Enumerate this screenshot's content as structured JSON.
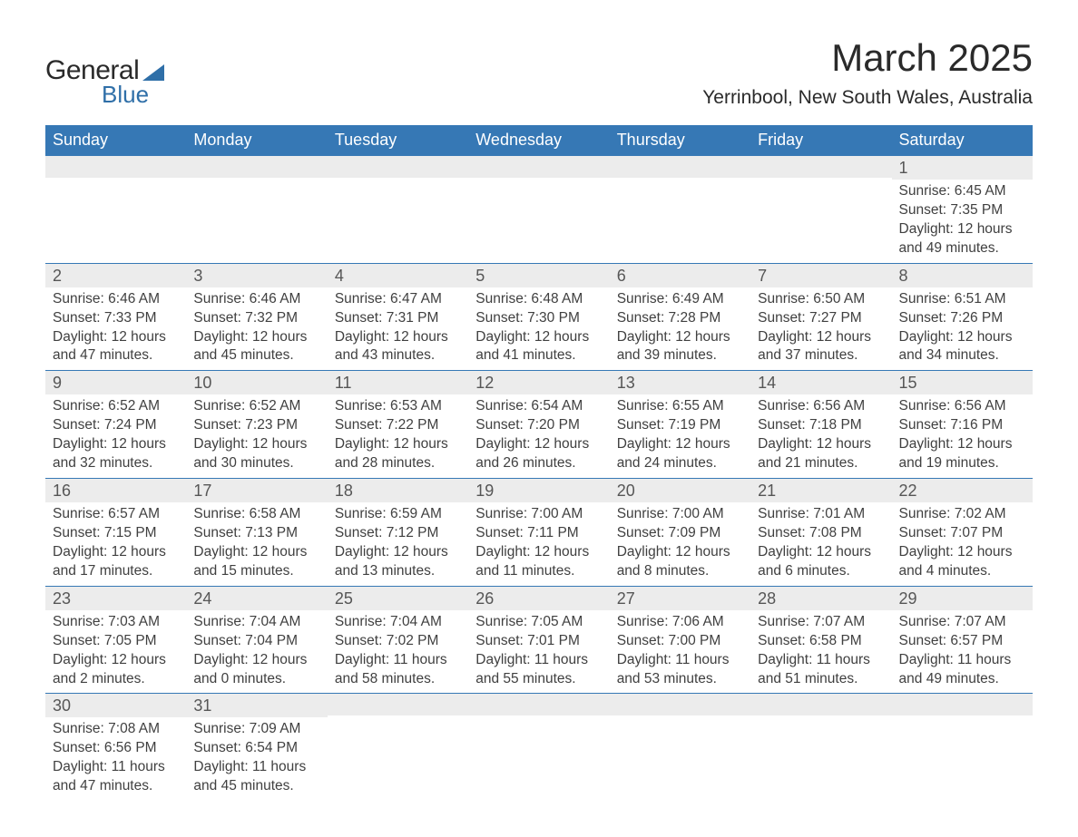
{
  "logo": {
    "text1": "General",
    "text2": "Blue"
  },
  "title": "March 2025",
  "location": "Yerrinbool, New South Wales, Australia",
  "colors": {
    "header_bg": "#3678b5",
    "header_text": "#ffffff",
    "daynum_bg": "#ececec",
    "border": "#3678b5",
    "logo_accent": "#2f6fa8"
  },
  "typography": {
    "title_fontsize": 42,
    "location_fontsize": 21,
    "header_fontsize": 18,
    "daynum_fontsize": 18,
    "body_fontsize": 15.5
  },
  "weekdays": [
    "Sunday",
    "Monday",
    "Tuesday",
    "Wednesday",
    "Thursday",
    "Friday",
    "Saturday"
  ],
  "weeks": [
    [
      {
        "day": "",
        "sunrise": "",
        "sunset": "",
        "daylight": ""
      },
      {
        "day": "",
        "sunrise": "",
        "sunset": "",
        "daylight": ""
      },
      {
        "day": "",
        "sunrise": "",
        "sunset": "",
        "daylight": ""
      },
      {
        "day": "",
        "sunrise": "",
        "sunset": "",
        "daylight": ""
      },
      {
        "day": "",
        "sunrise": "",
        "sunset": "",
        "daylight": ""
      },
      {
        "day": "",
        "sunrise": "",
        "sunset": "",
        "daylight": ""
      },
      {
        "day": "1",
        "sunrise": "Sunrise: 6:45 AM",
        "sunset": "Sunset: 7:35 PM",
        "daylight": "Daylight: 12 hours and 49 minutes."
      }
    ],
    [
      {
        "day": "2",
        "sunrise": "Sunrise: 6:46 AM",
        "sunset": "Sunset: 7:33 PM",
        "daylight": "Daylight: 12 hours and 47 minutes."
      },
      {
        "day": "3",
        "sunrise": "Sunrise: 6:46 AM",
        "sunset": "Sunset: 7:32 PM",
        "daylight": "Daylight: 12 hours and 45 minutes."
      },
      {
        "day": "4",
        "sunrise": "Sunrise: 6:47 AM",
        "sunset": "Sunset: 7:31 PM",
        "daylight": "Daylight: 12 hours and 43 minutes."
      },
      {
        "day": "5",
        "sunrise": "Sunrise: 6:48 AM",
        "sunset": "Sunset: 7:30 PM",
        "daylight": "Daylight: 12 hours and 41 minutes."
      },
      {
        "day": "6",
        "sunrise": "Sunrise: 6:49 AM",
        "sunset": "Sunset: 7:28 PM",
        "daylight": "Daylight: 12 hours and 39 minutes."
      },
      {
        "day": "7",
        "sunrise": "Sunrise: 6:50 AM",
        "sunset": "Sunset: 7:27 PM",
        "daylight": "Daylight: 12 hours and 37 minutes."
      },
      {
        "day": "8",
        "sunrise": "Sunrise: 6:51 AM",
        "sunset": "Sunset: 7:26 PM",
        "daylight": "Daylight: 12 hours and 34 minutes."
      }
    ],
    [
      {
        "day": "9",
        "sunrise": "Sunrise: 6:52 AM",
        "sunset": "Sunset: 7:24 PM",
        "daylight": "Daylight: 12 hours and 32 minutes."
      },
      {
        "day": "10",
        "sunrise": "Sunrise: 6:52 AM",
        "sunset": "Sunset: 7:23 PM",
        "daylight": "Daylight: 12 hours and 30 minutes."
      },
      {
        "day": "11",
        "sunrise": "Sunrise: 6:53 AM",
        "sunset": "Sunset: 7:22 PM",
        "daylight": "Daylight: 12 hours and 28 minutes."
      },
      {
        "day": "12",
        "sunrise": "Sunrise: 6:54 AM",
        "sunset": "Sunset: 7:20 PM",
        "daylight": "Daylight: 12 hours and 26 minutes."
      },
      {
        "day": "13",
        "sunrise": "Sunrise: 6:55 AM",
        "sunset": "Sunset: 7:19 PM",
        "daylight": "Daylight: 12 hours and 24 minutes."
      },
      {
        "day": "14",
        "sunrise": "Sunrise: 6:56 AM",
        "sunset": "Sunset: 7:18 PM",
        "daylight": "Daylight: 12 hours and 21 minutes."
      },
      {
        "day": "15",
        "sunrise": "Sunrise: 6:56 AM",
        "sunset": "Sunset: 7:16 PM",
        "daylight": "Daylight: 12 hours and 19 minutes."
      }
    ],
    [
      {
        "day": "16",
        "sunrise": "Sunrise: 6:57 AM",
        "sunset": "Sunset: 7:15 PM",
        "daylight": "Daylight: 12 hours and 17 minutes."
      },
      {
        "day": "17",
        "sunrise": "Sunrise: 6:58 AM",
        "sunset": "Sunset: 7:13 PM",
        "daylight": "Daylight: 12 hours and 15 minutes."
      },
      {
        "day": "18",
        "sunrise": "Sunrise: 6:59 AM",
        "sunset": "Sunset: 7:12 PM",
        "daylight": "Daylight: 12 hours and 13 minutes."
      },
      {
        "day": "19",
        "sunrise": "Sunrise: 7:00 AM",
        "sunset": "Sunset: 7:11 PM",
        "daylight": "Daylight: 12 hours and 11 minutes."
      },
      {
        "day": "20",
        "sunrise": "Sunrise: 7:00 AM",
        "sunset": "Sunset: 7:09 PM",
        "daylight": "Daylight: 12 hours and 8 minutes."
      },
      {
        "day": "21",
        "sunrise": "Sunrise: 7:01 AM",
        "sunset": "Sunset: 7:08 PM",
        "daylight": "Daylight: 12 hours and 6 minutes."
      },
      {
        "day": "22",
        "sunrise": "Sunrise: 7:02 AM",
        "sunset": "Sunset: 7:07 PM",
        "daylight": "Daylight: 12 hours and 4 minutes."
      }
    ],
    [
      {
        "day": "23",
        "sunrise": "Sunrise: 7:03 AM",
        "sunset": "Sunset: 7:05 PM",
        "daylight": "Daylight: 12 hours and 2 minutes."
      },
      {
        "day": "24",
        "sunrise": "Sunrise: 7:04 AM",
        "sunset": "Sunset: 7:04 PM",
        "daylight": "Daylight: 12 hours and 0 minutes."
      },
      {
        "day": "25",
        "sunrise": "Sunrise: 7:04 AM",
        "sunset": "Sunset: 7:02 PM",
        "daylight": "Daylight: 11 hours and 58 minutes."
      },
      {
        "day": "26",
        "sunrise": "Sunrise: 7:05 AM",
        "sunset": "Sunset: 7:01 PM",
        "daylight": "Daylight: 11 hours and 55 minutes."
      },
      {
        "day": "27",
        "sunrise": "Sunrise: 7:06 AM",
        "sunset": "Sunset: 7:00 PM",
        "daylight": "Daylight: 11 hours and 53 minutes."
      },
      {
        "day": "28",
        "sunrise": "Sunrise: 7:07 AM",
        "sunset": "Sunset: 6:58 PM",
        "daylight": "Daylight: 11 hours and 51 minutes."
      },
      {
        "day": "29",
        "sunrise": "Sunrise: 7:07 AM",
        "sunset": "Sunset: 6:57 PM",
        "daylight": "Daylight: 11 hours and 49 minutes."
      }
    ],
    [
      {
        "day": "30",
        "sunrise": "Sunrise: 7:08 AM",
        "sunset": "Sunset: 6:56 PM",
        "daylight": "Daylight: 11 hours and 47 minutes."
      },
      {
        "day": "31",
        "sunrise": "Sunrise: 7:09 AM",
        "sunset": "Sunset: 6:54 PM",
        "daylight": "Daylight: 11 hours and 45 minutes."
      },
      {
        "day": "",
        "sunrise": "",
        "sunset": "",
        "daylight": ""
      },
      {
        "day": "",
        "sunrise": "",
        "sunset": "",
        "daylight": ""
      },
      {
        "day": "",
        "sunrise": "",
        "sunset": "",
        "daylight": ""
      },
      {
        "day": "",
        "sunrise": "",
        "sunset": "",
        "daylight": ""
      },
      {
        "day": "",
        "sunrise": "",
        "sunset": "",
        "daylight": ""
      }
    ]
  ]
}
